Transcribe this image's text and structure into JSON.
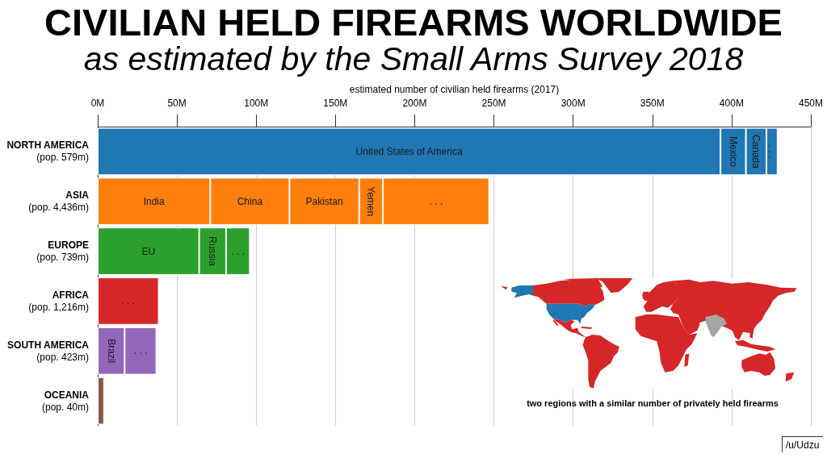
{
  "chart_data": {
    "type": "bar",
    "title": "CIVILIAN HELD FIREARMS WORLDWIDE",
    "subtitle": "as estimated by the Small Arms Survey 2018",
    "xlabel": "estimated number of civilian held firearms (2017)",
    "categories": [
      "NORTH AMERICA\n(pop. 579m)",
      "ASIA\n(pop. 4,436m)",
      "EUROPE\n(pop. 739m)",
      "AFRICA\n(pop. 1,216m)",
      "SOUTH AMERICA\n(pop. 423m)",
      "OCEANIA\n(pop. 40m)"
    ],
    "orientation": "horizontal",
    "stacked": true,
    "grid": "x",
    "xlim": [
      0,
      450
    ],
    "xticks": [
      {
        "value": 0,
        "label": "0M"
      },
      {
        "value": 50,
        "label": "50M"
      },
      {
        "value": 100,
        "label": "100M"
      },
      {
        "value": 150,
        "label": "150M"
      },
      {
        "value": 200,
        "label": "200M"
      },
      {
        "value": 250,
        "label": "250M"
      },
      {
        "value": 300,
        "label": "300M"
      },
      {
        "value": 350,
        "label": "350M"
      },
      {
        "value": 400,
        "label": "400M"
      },
      {
        "value": 450,
        "label": "450M"
      }
    ],
    "series": [
      {
        "values": [
          393,
          71,
          64,
          38.5,
          17,
          4
        ],
        "colors": [
          "#1f77b4",
          "#ff7f0e",
          "#2ca02c",
          "#d62728",
          "#9467bd",
          "#8c564b"
        ],
        "value_labels": [
          "United States of America",
          "India",
          "EU",
          ". . .",
          "Brazil",
          null
        ]
      },
      {
        "values": [
          16,
          50,
          17,
          null,
          20,
          null
        ],
        "colors": [
          "#1f77b4",
          "#ff7f0e",
          "#2ca02c",
          null,
          "#9467bd",
          null
        ],
        "value_labels": [
          "Mexico",
          "China",
          "Russia",
          null,
          ". . .",
          null
        ]
      },
      {
        "values": [
          13,
          44,
          15,
          null,
          null,
          null
        ],
        "colors": [
          "#1f77b4",
          "#ff7f0e",
          "#2ca02c",
          null,
          null,
          null
        ],
        "value_labels": [
          "Canada",
          "Pakistan",
          ". . .",
          null,
          null,
          null
        ]
      },
      {
        "values": [
          7,
          15,
          null,
          null,
          null,
          null
        ],
        "colors": [
          "#1f77b4",
          "#ff7f0e",
          null,
          null,
          null,
          null
        ],
        "value_labels": [
          ". . .",
          "Yemen",
          null,
          null,
          null,
          null
        ]
      },
      {
        "values": [
          null,
          67,
          null,
          null,
          null,
          null
        ],
        "colors": [
          null,
          "#ff7f0e",
          null,
          null,
          null,
          null
        ],
        "value_labels": [
          null,
          ". . .",
          null,
          null,
          null,
          null
        ]
      }
    ],
    "annotations": [
      "two regions with a similar number of privately held firearms",
      "/u/Udzu"
    ]
  }
}
